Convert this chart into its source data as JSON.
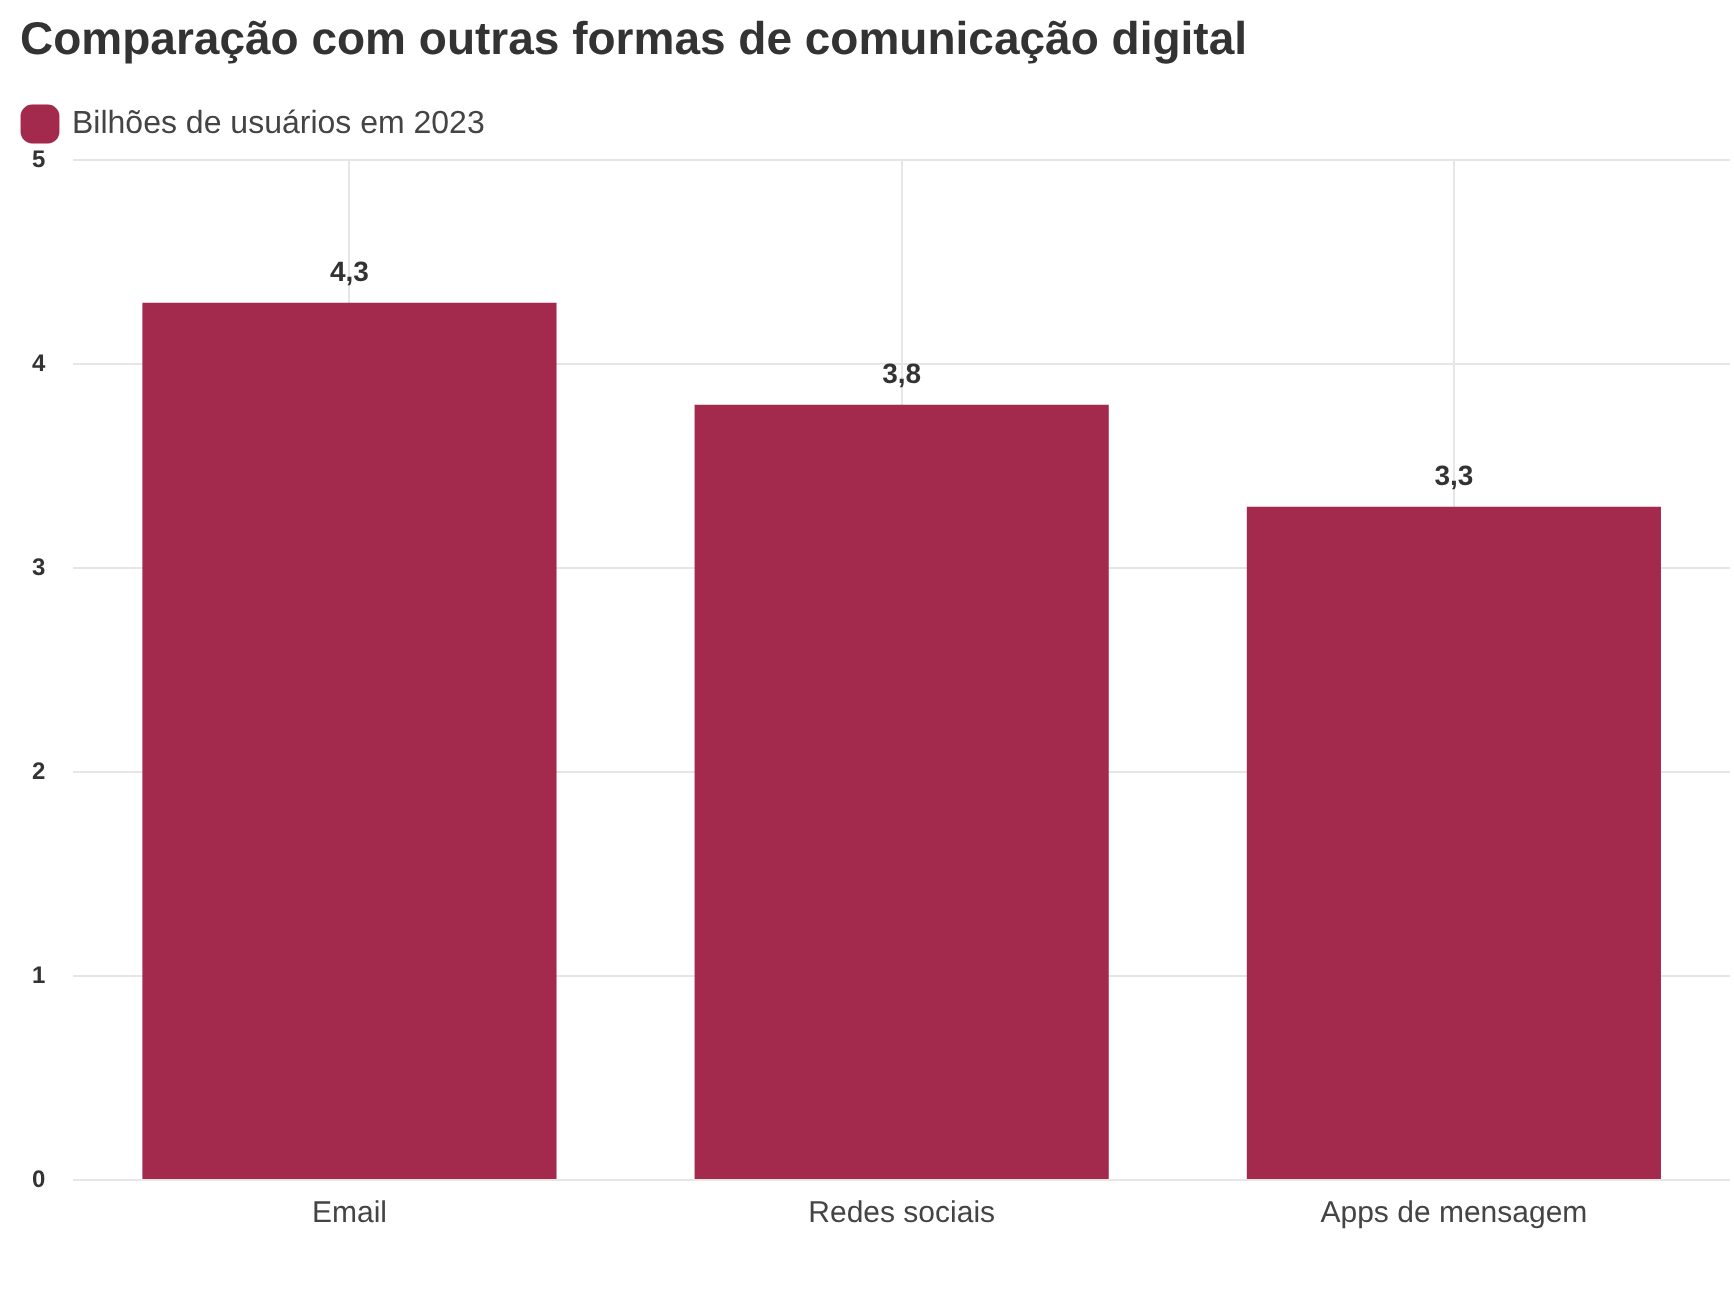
{
  "chart_data": {
    "type": "bar",
    "title": "Comparação com outras formas de comunicação digital",
    "categories": [
      "Email",
      "Redes sociais",
      "Apps de mensagem"
    ],
    "series": [
      {
        "name": "Bilhões de usuários em 2023",
        "color": "#a32a4d",
        "values": [
          4.3,
          3.8,
          3.3
        ],
        "value_labels": [
          "4,3",
          "3,8",
          "3,3"
        ]
      }
    ],
    "ylim": [
      0,
      5
    ],
    "yticks": [
      0,
      1,
      2,
      3,
      4,
      5
    ],
    "grid": true,
    "legend": "top left"
  }
}
